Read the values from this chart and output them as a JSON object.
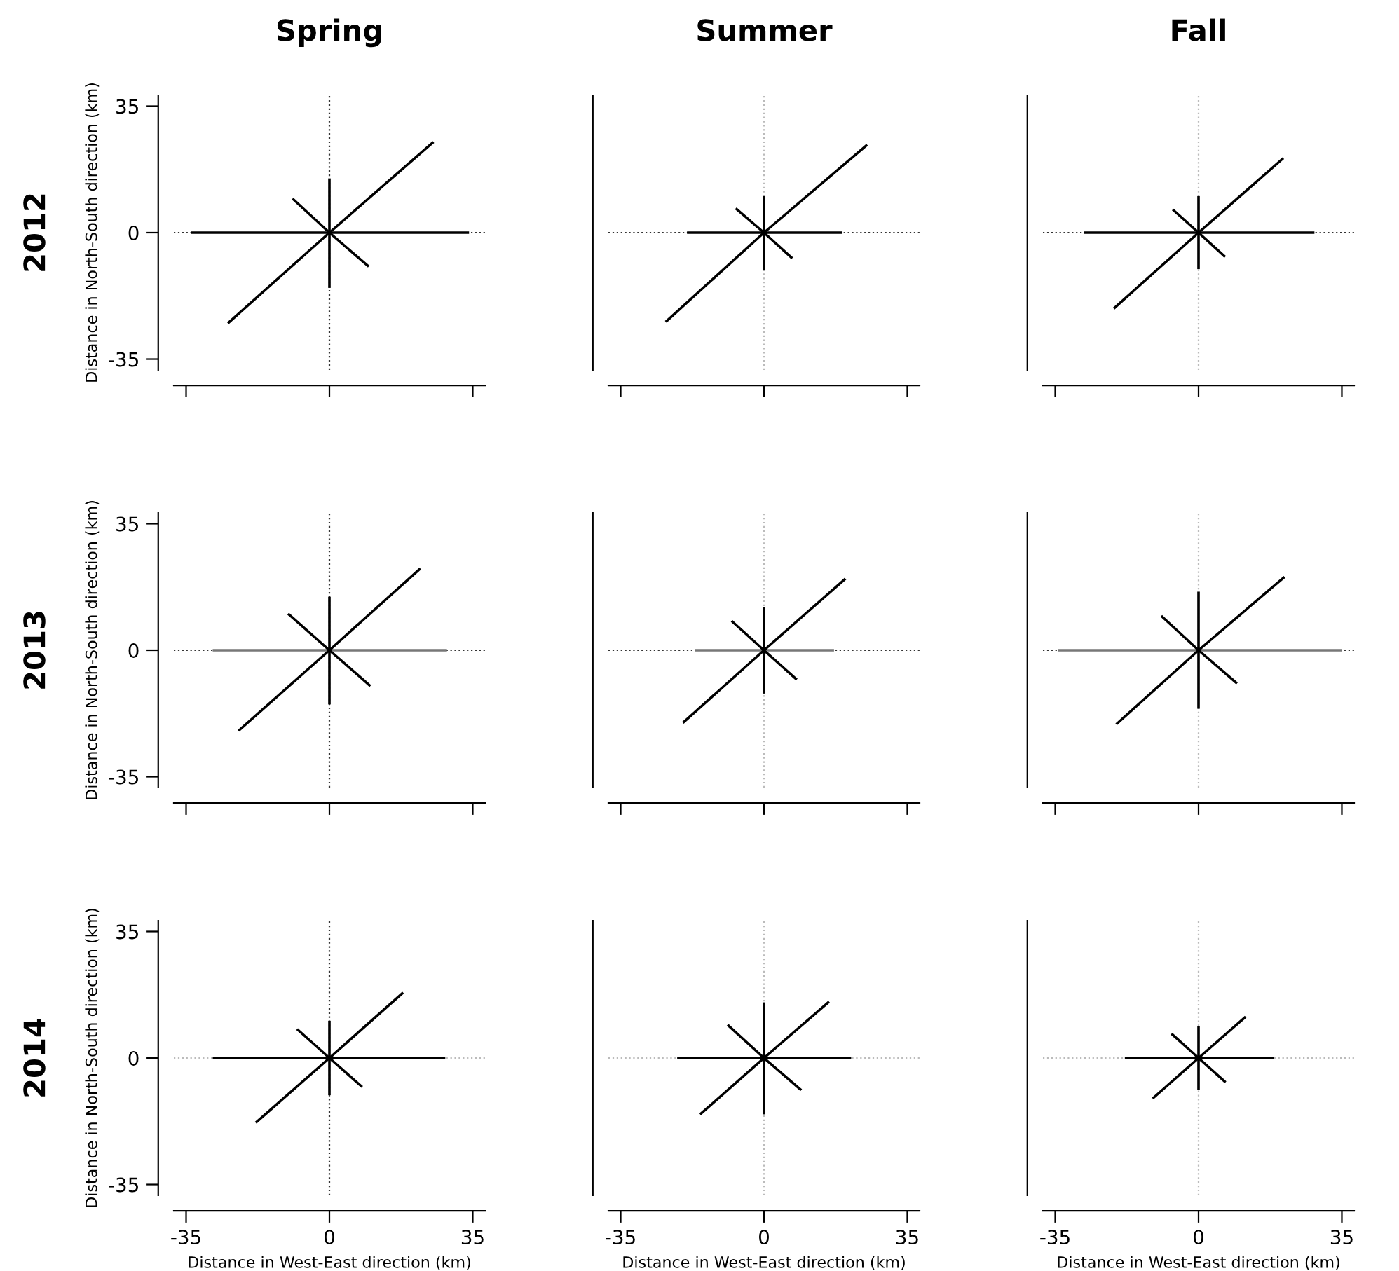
{
  "chart_data": [
    {
      "type": "line",
      "title": "Spring",
      "ylabel": "Distance in North-South direction (km)",
      "annotations": [
        "2012"
      ],
      "xlim": [
        -38,
        38
      ],
      "ylim": [
        -38,
        38
      ],
      "xticks": [
        -35,
        0,
        35
      ],
      "yticks": [
        -35,
        0,
        35
      ],
      "tick_labels": "y",
      "ref_lines": [
        {
          "axis": "x",
          "value": 0,
          "color": "#333333",
          "line_style": "dotted"
        },
        {
          "axis": "y",
          "value": 0,
          "color": "#333333",
          "line_style": "dotted"
        }
      ],
      "series": [
        {
          "color": "#000000",
          "x": [
            -33.8,
            34.1
          ],
          "values": [
            0,
            0
          ]
        },
        {
          "color": "#000000",
          "x": [
            0,
            0
          ],
          "values": [
            -15.3,
            15.0
          ]
        },
        {
          "color": "#000000",
          "x": [
            -24.8,
            0,
            25.4
          ],
          "values": [
            -25.1,
            0,
            25.1
          ]
        },
        {
          "color": "#000000",
          "x": [
            -9.0,
            0,
            9.6
          ],
          "values": [
            9.4,
            0,
            -9.4
          ]
        }
      ]
    },
    {
      "type": "line",
      "title": "Summer",
      "xlim": [
        -38,
        38
      ],
      "ylim": [
        -38,
        38
      ],
      "xticks": [
        -35,
        0,
        35
      ],
      "yticks": [
        -35,
        0,
        35
      ],
      "tick_labels": false,
      "ref_lines": [
        {
          "axis": "x",
          "value": 0,
          "color": "#bbbbbb",
          "line_style": "dotted"
        },
        {
          "axis": "y",
          "value": 0,
          "color": "#333333",
          "line_style": "dotted"
        }
      ],
      "series": [
        {
          "color": "#000000",
          "x": [
            -18.8,
            19.1
          ],
          "values": [
            0,
            0
          ]
        },
        {
          "color": "#000000",
          "x": [
            0,
            0
          ],
          "values": [
            -10.5,
            10.1
          ]
        },
        {
          "color": "#000000",
          "x": [
            -24.0,
            0,
            25.2
          ],
          "values": [
            -24.7,
            0,
            24.3
          ]
        },
        {
          "color": "#000000",
          "x": [
            -6.9,
            0,
            6.9
          ],
          "values": [
            6.7,
            0,
            -7.1
          ]
        }
      ]
    },
    {
      "type": "line",
      "title": "Fall",
      "xlim": [
        -38,
        38
      ],
      "ylim": [
        -38,
        38
      ],
      "xticks": [
        -35,
        0,
        35
      ],
      "yticks": [
        -35,
        0,
        35
      ],
      "tick_labels": false,
      "ref_lines": [
        {
          "axis": "x",
          "value": 0,
          "color": "#bbbbbb",
          "line_style": "dotted"
        },
        {
          "axis": "y",
          "value": 0,
          "color": "#333333",
          "line_style": "dotted"
        }
      ],
      "series": [
        {
          "color": "#000000",
          "x": [
            -28.0,
            28.3
          ],
          "values": [
            0,
            0
          ]
        },
        {
          "color": "#000000",
          "x": [
            0,
            0
          ],
          "values": [
            -10.1,
            10.1
          ]
        },
        {
          "color": "#000000",
          "x": [
            -20.7,
            0,
            20.7
          ],
          "values": [
            -21.0,
            0,
            20.6
          ]
        },
        {
          "color": "#000000",
          "x": [
            -6.3,
            0,
            6.5
          ],
          "values": [
            6.4,
            0,
            -6.7
          ]
        }
      ]
    },
    {
      "type": "line",
      "ylabel": "Distance in North-South direction (km)",
      "annotations": [
        "2013"
      ],
      "xlim": [
        -38,
        38
      ],
      "ylim": [
        -38,
        38
      ],
      "xticks": [
        -35,
        0,
        35
      ],
      "yticks": [
        -35,
        0,
        35
      ],
      "tick_labels": "y",
      "ref_lines": [
        {
          "axis": "x",
          "value": 0,
          "color": "#333333",
          "line_style": "dotted"
        },
        {
          "axis": "y",
          "value": 0,
          "color": "#333333",
          "line_style": "dotted"
        }
      ],
      "series": [
        {
          "color": "#777777",
          "x": [
            -28.5,
            28.7
          ],
          "values": [
            0,
            0
          ]
        },
        {
          "color": "#000000",
          "x": [
            0,
            0
          ],
          "values": [
            -15.0,
            14.8
          ]
        },
        {
          "color": "#000000",
          "x": [
            -22.2,
            0,
            22.2
          ],
          "values": [
            -22.3,
            0,
            22.6
          ]
        },
        {
          "color": "#000000",
          "x": [
            -10.1,
            0,
            10.0
          ],
          "values": [
            10.1,
            0,
            -9.9
          ]
        }
      ]
    },
    {
      "type": "line",
      "xlim": [
        -38,
        38
      ],
      "ylim": [
        -38,
        38
      ],
      "xticks": [
        -35,
        0,
        35
      ],
      "yticks": [
        -35,
        0,
        35
      ],
      "tick_labels": false,
      "ref_lines": [
        {
          "axis": "x",
          "value": 0,
          "color": "#bbbbbb",
          "line_style": "dotted"
        },
        {
          "axis": "y",
          "value": 0,
          "color": "#333333",
          "line_style": "dotted"
        }
      ],
      "series": [
        {
          "color": "#777777",
          "x": [
            -16.8,
            17.1
          ],
          "values": [
            0,
            0
          ]
        },
        {
          "color": "#000000",
          "x": [
            0,
            0
          ],
          "values": [
            -12.0,
            12.0
          ]
        },
        {
          "color": "#000000",
          "x": [
            -19.8,
            0,
            19.9
          ],
          "values": [
            -20.1,
            0,
            19.8
          ]
        },
        {
          "color": "#000000",
          "x": [
            -7.9,
            0,
            8.0
          ],
          "values": [
            8.1,
            0,
            -8.1
          ]
        }
      ]
    },
    {
      "type": "line",
      "xlim": [
        -38,
        38
      ],
      "ylim": [
        -38,
        38
      ],
      "xticks": [
        -35,
        0,
        35
      ],
      "yticks": [
        -35,
        0,
        35
      ],
      "tick_labels": false,
      "ref_lines": [
        {
          "axis": "x",
          "value": 0,
          "color": "#bbbbbb",
          "line_style": "dotted"
        },
        {
          "axis": "y",
          "value": 0,
          "color": "#333333",
          "line_style": "dotted"
        }
      ],
      "series": [
        {
          "color": "#777777",
          "x": [
            -34.3,
            35
          ],
          "values": [
            0,
            0
          ]
        },
        {
          "color": "#000000",
          "x": [
            0,
            0
          ],
          "values": [
            -16.2,
            16.2
          ]
        },
        {
          "color": "#000000",
          "x": [
            -20.1,
            0,
            21.0
          ],
          "values": [
            -20.5,
            0,
            20.3
          ]
        },
        {
          "color": "#000000",
          "x": [
            -9.1,
            0,
            9.4
          ],
          "values": [
            9.5,
            0,
            -9.2
          ]
        }
      ]
    },
    {
      "type": "line",
      "xlabel": "Distance in West-East direction (km)",
      "ylabel": "Distance in North-South direction (km)",
      "annotations": [
        "2014"
      ],
      "xlim": [
        -38,
        38
      ],
      "ylim": [
        -38,
        38
      ],
      "xticks": [
        -35,
        0,
        35
      ],
      "yticks": [
        -35,
        0,
        35
      ],
      "ref_lines": [
        {
          "axis": "x",
          "value": 0,
          "color": "#333333",
          "line_style": "dotted"
        },
        {
          "axis": "y",
          "value": 0,
          "color": "#bbbbbb",
          "line_style": "dotted"
        }
      ],
      "series": [
        {
          "color": "#000000",
          "x": [
            -28.5,
            28.3
          ],
          "values": [
            0,
            0
          ]
        },
        {
          "color": "#000000",
          "x": [
            0,
            0
          ],
          "values": [
            -10.3,
            10.3
          ]
        },
        {
          "color": "#000000",
          "x": [
            -18.0,
            0,
            18.0
          ],
          "values": [
            -17.9,
            0,
            18.1
          ]
        },
        {
          "color": "#000000",
          "x": [
            -7.9,
            0,
            8.0
          ],
          "values": [
            8.0,
            0,
            -8.0
          ]
        }
      ]
    },
    {
      "type": "line",
      "xlabel": "Distance in West-East direction (km)",
      "xlim": [
        -38,
        38
      ],
      "ylim": [
        -38,
        38
      ],
      "xticks": [
        -35,
        0,
        35
      ],
      "yticks": [
        -35,
        0,
        35
      ],
      "tick_labels": "x",
      "ref_lines": [
        {
          "axis": "x",
          "value": 0,
          "color": "#bbbbbb",
          "line_style": "dotted"
        },
        {
          "axis": "y",
          "value": 0,
          "color": "#bbbbbb",
          "line_style": "dotted"
        }
      ],
      "series": [
        {
          "color": "#000000",
          "x": [
            -21.2,
            21.3
          ],
          "values": [
            0,
            0
          ]
        },
        {
          "color": "#000000",
          "x": [
            0,
            0
          ],
          "values": [
            -15.6,
            15.4
          ]
        },
        {
          "color": "#000000",
          "x": [
            -15.6,
            0,
            15.9
          ],
          "values": [
            -15.6,
            0,
            15.6
          ]
        },
        {
          "color": "#000000",
          "x": [
            -8.9,
            0,
            9.1
          ],
          "values": [
            9.2,
            0,
            -8.9
          ]
        }
      ]
    },
    {
      "type": "line",
      "xlabel": "Distance in West-East direction (km)",
      "xlim": [
        -38,
        38
      ],
      "ylim": [
        -38,
        38
      ],
      "xticks": [
        -35,
        0,
        35
      ],
      "yticks": [
        -35,
        0,
        35
      ],
      "tick_labels": "x",
      "ref_lines": [
        {
          "axis": "x",
          "value": 0,
          "color": "#bbbbbb",
          "line_style": "dotted"
        },
        {
          "axis": "y",
          "value": 0,
          "color": "#bbbbbb",
          "line_style": "dotted"
        }
      ],
      "series": [
        {
          "color": "#000000",
          "x": [
            -18.0,
            18.4
          ],
          "values": [
            0,
            0
          ]
        },
        {
          "color": "#000000",
          "x": [
            0,
            0
          ],
          "values": [
            -8.9,
            8.9
          ]
        },
        {
          "color": "#000000",
          "x": [
            -11.2,
            0,
            11.5
          ],
          "values": [
            -11.2,
            0,
            11.4
          ]
        },
        {
          "color": "#000000",
          "x": [
            -6.6,
            0,
            6.6
          ],
          "values": [
            6.7,
            0,
            -6.7
          ]
        }
      ]
    }
  ]
}
